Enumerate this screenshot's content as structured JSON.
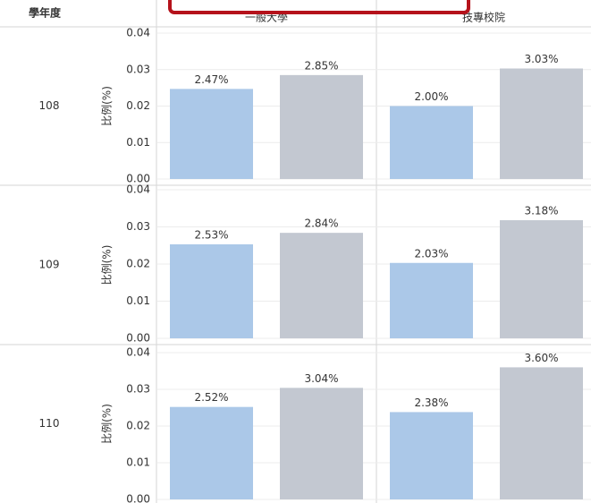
{
  "chart_data": {
    "type": "bar",
    "row_header": "學年度",
    "columns": [
      "一般大學",
      "技專校院"
    ],
    "ylabel": "比例(%)",
    "ylim": [
      0,
      0.04
    ],
    "yticks": [
      {
        "value": 0,
        "label": "0.00"
      },
      0.01,
      0.02,
      0.03,
      0.04
    ],
    "grid": true,
    "colors": [
      "#abc8e8",
      "#c3c8d1"
    ],
    "rows": [
      {
        "label": "108",
        "values": [
          [
            0.0247,
            0.0285
          ],
          [
            0.02,
            0.0303
          ]
        ],
        "value_labels": [
          [
            "2.47%",
            "2.85%"
          ],
          [
            "2.00%",
            "3.03%"
          ]
        ]
      },
      {
        "label": "109",
        "values": [
          [
            0.0253,
            0.0284
          ],
          [
            0.0203,
            0.0318
          ]
        ],
        "value_labels": [
          [
            "2.53%",
            "2.84%"
          ],
          [
            "2.03%",
            "3.18%"
          ]
        ]
      },
      {
        "label": "110",
        "values": [
          [
            0.0252,
            0.0304
          ],
          [
            0.0238,
            0.036
          ]
        ],
        "value_labels": [
          [
            "2.52%",
            "3.04%"
          ],
          [
            "2.38%",
            "3.60%"
          ]
        ]
      }
    ]
  }
}
